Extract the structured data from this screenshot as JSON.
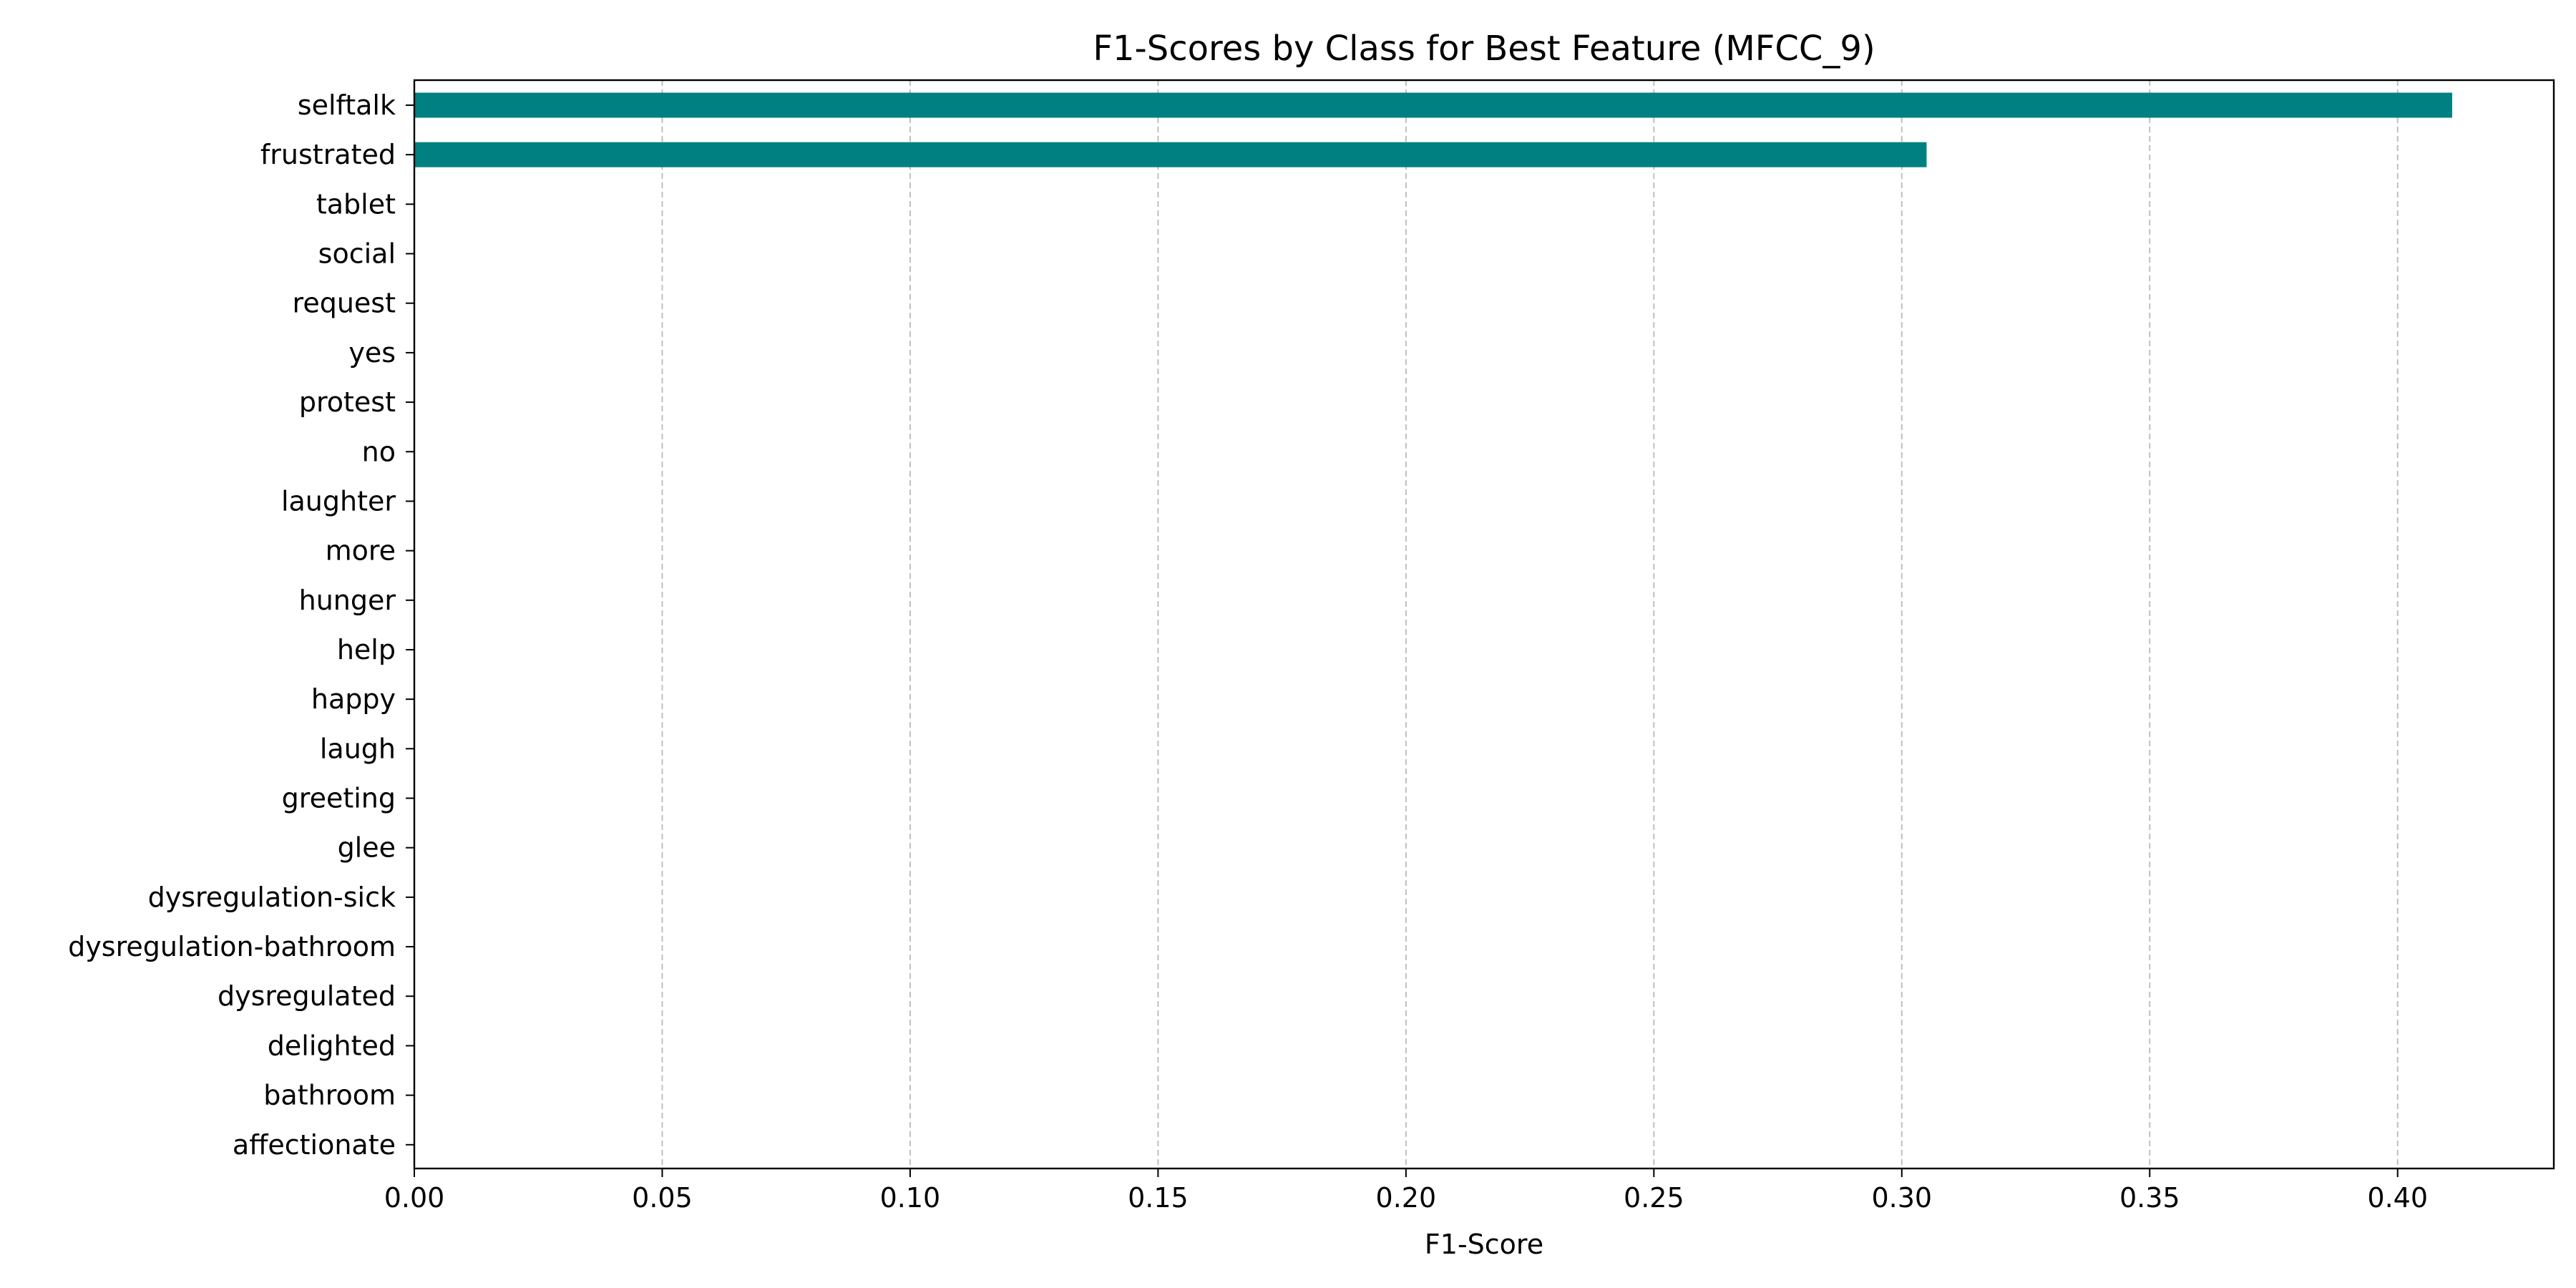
{
  "chart_data": {
    "type": "bar",
    "orientation": "horizontal",
    "title": "F1-Scores by Class for Best Feature (MFCC_9)",
    "xlabel": "F1-Score",
    "ylabel": "",
    "xlim": [
      0,
      0.4315
    ],
    "xticks": [
      0.0,
      0.05,
      0.1,
      0.15,
      0.2,
      0.25,
      0.3,
      0.35,
      0.4
    ],
    "xtick_labels": [
      "0.00",
      "0.05",
      "0.10",
      "0.15",
      "0.20",
      "0.25",
      "0.30",
      "0.35",
      "0.40"
    ],
    "grid": "x-dashed",
    "bar_color": "#008080",
    "categories": [
      "selftalk",
      "frustrated",
      "tablet",
      "social",
      "request",
      "yes",
      "protest",
      "no",
      "laughter",
      "more",
      "hunger",
      "help",
      "happy",
      "laugh",
      "greeting",
      "glee",
      "dysregulation-sick",
      "dysregulation-bathroom",
      "dysregulated",
      "delighted",
      "bathroom",
      "affectionate"
    ],
    "values": [
      0.411,
      0.305,
      0,
      0,
      0,
      0,
      0,
      0,
      0,
      0,
      0,
      0,
      0,
      0,
      0,
      0,
      0,
      0,
      0,
      0,
      0,
      0
    ]
  }
}
